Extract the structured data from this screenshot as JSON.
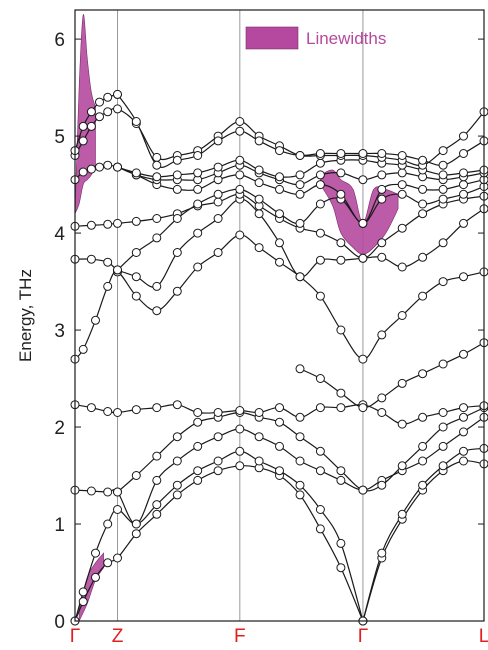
{
  "chart_data": {
    "type": "line",
    "title": "",
    "ylabel": "Energy, THz",
    "xlabel": "",
    "ylim": [
      0,
      6.3
    ],
    "yticks": [
      0,
      1,
      2,
      3,
      4,
      5,
      6
    ],
    "ytick_labels": [
      "0",
      "1",
      "2",
      "3",
      "4",
      "5",
      "6"
    ],
    "xlim": [
      0,
      1
    ],
    "grid": false,
    "legend_position": "top-right",
    "high_symmetry_points": [
      {
        "label": "Γ",
        "x": 0.0
      },
      {
        "label": "Z",
        "x": 0.104
      },
      {
        "label": "F",
        "x": 0.403
      },
      {
        "label": "Γ",
        "x": 0.704
      },
      {
        "label": "L",
        "x": 1.0
      }
    ],
    "legend": {
      "label": "Linewidths",
      "color": "#b5499f"
    },
    "colors": {
      "branch": "#1a1a1a",
      "linewidth_fill": "#b5499f",
      "symmetry_label": "#e02020",
      "vline": "#999999"
    },
    "branches": [
      {
        "x": [
          0,
          0.02,
          0.05,
          0.08,
          0.104,
          0.15,
          0.2,
          0.25,
          0.3,
          0.35,
          0.403,
          0.45,
          0.5,
          0.55,
          0.6,
          0.65,
          0.704
        ],
        "y": [
          0,
          0.2,
          0.45,
          0.6,
          0.65,
          0.9,
          1.1,
          1.3,
          1.45,
          1.55,
          1.6,
          1.58,
          1.5,
          1.3,
          0.95,
          0.55,
          0
        ]
      },
      {
        "x": [
          0,
          0.02,
          0.05,
          0.08,
          0.104,
          0.15,
          0.2,
          0.25,
          0.3,
          0.35,
          0.403,
          0.45,
          0.5,
          0.55,
          0.6,
          0.65,
          0.704
        ],
        "y": [
          0,
          0.3,
          0.7,
          1.0,
          1.15,
          1.0,
          1.2,
          1.4,
          1.55,
          1.65,
          1.75,
          1.65,
          1.55,
          1.4,
          1.15,
          0.8,
          0
        ]
      },
      {
        "x": [
          0.704,
          0.75,
          0.8,
          0.85,
          0.9,
          0.95,
          1.0
        ],
        "y": [
          0,
          0.65,
          1.05,
          1.35,
          1.55,
          1.65,
          1.62
        ]
      },
      {
        "x": [
          0.704,
          0.75,
          0.8,
          0.85,
          0.9,
          0.95,
          1.0
        ],
        "y": [
          0,
          0.7,
          1.1,
          1.4,
          1.6,
          1.75,
          1.78
        ]
      },
      {
        "x": [
          0,
          0.04,
          0.08,
          0.104,
          0.15,
          0.2,
          0.25,
          0.3,
          0.35,
          0.403,
          0.45,
          0.5,
          0.55,
          0.6,
          0.65,
          0.704,
          0.75,
          0.8,
          0.85,
          0.9,
          0.95,
          1.0
        ],
        "y": [
          1.35,
          1.34,
          1.33,
          1.33,
          1.0,
          1.45,
          1.65,
          1.8,
          1.9,
          1.98,
          1.9,
          1.8,
          1.65,
          1.55,
          1.45,
          1.35,
          1.45,
          1.55,
          1.65,
          1.8,
          1.95,
          2.1
        ]
      },
      {
        "x": [
          0.104,
          0.15,
          0.2,
          0.25,
          0.3,
          0.35,
          0.403,
          0.45,
          0.5,
          0.55,
          0.6,
          0.65,
          0.704,
          0.75,
          0.8,
          0.85,
          0.9,
          0.95,
          1.0
        ],
        "y": [
          1.33,
          1.5,
          1.7,
          1.9,
          2.05,
          2.1,
          2.15,
          2.1,
          2.05,
          1.9,
          1.75,
          1.55,
          1.35,
          1.4,
          1.6,
          1.8,
          2.0,
          2.1,
          2.2
        ]
      },
      {
        "x": [
          0,
          0.04,
          0.08,
          0.104,
          0.15,
          0.2,
          0.25,
          0.3,
          0.35,
          0.403,
          0.45,
          0.5,
          0.55,
          0.6,
          0.65,
          0.704,
          0.75,
          0.8,
          0.85,
          0.9,
          0.95,
          1.0
        ],
        "y": [
          2.23,
          2.2,
          2.16,
          2.15,
          2.18,
          2.2,
          2.23,
          2.15,
          2.15,
          2.17,
          2.15,
          2.2,
          2.1,
          2.2,
          2.2,
          2.23,
          2.15,
          2.03,
          2.1,
          2.15,
          2.2,
          2.22
        ]
      },
      {
        "x": [
          0,
          0.02,
          0.05,
          0.08,
          0.104,
          0.15,
          0.2,
          0.25,
          0.3,
          0.35,
          0.403,
          0.45,
          0.5,
          0.55,
          0.6,
          0.65,
          0.704,
          0.75,
          0.8,
          0.85,
          0.9,
          0.95,
          1.0
        ],
        "y": [
          2.7,
          2.8,
          3.1,
          3.45,
          3.6,
          3.35,
          3.2,
          3.4,
          3.65,
          3.8,
          3.98,
          3.85,
          3.7,
          3.55,
          3.35,
          3.0,
          2.7,
          2.95,
          3.15,
          3.35,
          3.5,
          3.55,
          3.6
        ]
      },
      {
        "x": [
          0.55,
          0.6,
          0.65,
          0.704,
          0.75,
          0.8,
          0.85,
          0.9,
          0.95,
          1.0
        ],
        "y": [
          2.6,
          2.5,
          2.35,
          2.2,
          2.3,
          2.45,
          2.55,
          2.65,
          2.75,
          2.87
        ]
      },
      {
        "x": [
          0,
          0.04,
          0.08,
          0.104,
          0.15,
          0.2,
          0.25,
          0.3,
          0.35,
          0.403,
          0.45,
          0.5,
          0.55,
          0.6,
          0.65,
          0.704,
          0.75,
          0.8,
          0.85,
          0.9,
          0.95,
          1.0
        ],
        "y": [
          3.73,
          3.73,
          3.7,
          3.62,
          3.55,
          3.45,
          3.8,
          4.0,
          4.15,
          4.35,
          4.2,
          3.9,
          3.55,
          3.72,
          3.72,
          3.74,
          3.75,
          3.65,
          3.75,
          3.9,
          4.1,
          4.25
        ]
      },
      {
        "x": [
          0,
          0.04,
          0.08,
          0.104,
          0.15,
          0.2,
          0.25,
          0.3,
          0.35,
          0.403,
          0.45,
          0.5,
          0.55,
          0.6,
          0.65,
          0.704,
          0.75,
          0.8,
          0.85,
          0.9,
          0.95,
          1.0
        ],
        "y": [
          4.07,
          4.08,
          4.09,
          4.1,
          4.12,
          4.15,
          4.2,
          4.28,
          4.32,
          4.4,
          4.28,
          4.15,
          4.05,
          4.0,
          3.9,
          3.74,
          3.9,
          4.05,
          4.2,
          4.3,
          4.35,
          4.38
        ]
      },
      {
        "x": [
          0.104,
          0.15,
          0.2,
          0.25,
          0.3,
          0.35,
          0.403,
          0.45,
          0.5,
          0.55,
          0.6,
          0.65,
          0.704,
          0.75,
          0.8,
          0.85,
          0.9,
          0.95,
          1.0
        ],
        "y": [
          3.62,
          3.8,
          3.95,
          4.15,
          4.3,
          4.4,
          4.45,
          4.35,
          4.2,
          4.1,
          4.3,
          4.35,
          4.1,
          4.35,
          4.4,
          4.3,
          4.35,
          4.4,
          4.48
        ]
      },
      {
        "x": [
          0,
          0.02,
          0.04,
          0.06,
          0.08,
          0.104,
          0.15,
          0.2,
          0.25,
          0.3,
          0.35,
          0.403,
          0.45,
          0.5,
          0.55,
          0.6,
          0.65,
          0.704,
          0.75,
          0.8,
          0.85,
          0.9,
          0.95,
          1.0
        ],
        "y": [
          4.55,
          4.63,
          4.66,
          4.68,
          4.7,
          4.68,
          4.6,
          4.5,
          4.45,
          4.45,
          4.55,
          4.6,
          4.52,
          4.45,
          4.4,
          4.5,
          4.4,
          4.1,
          4.45,
          4.5,
          4.45,
          4.45,
          4.5,
          4.55
        ]
      },
      {
        "x": [
          0.104,
          0.15,
          0.2,
          0.25,
          0.3,
          0.35,
          0.403,
          0.45,
          0.5,
          0.55,
          0.6,
          0.65,
          0.704,
          0.75,
          0.8,
          0.85,
          0.9,
          0.95,
          1.0
        ],
        "y": [
          4.68,
          4.6,
          4.55,
          4.55,
          4.55,
          4.62,
          4.7,
          4.62,
          4.55,
          4.5,
          4.6,
          4.62,
          4.55,
          4.6,
          4.62,
          4.58,
          4.55,
          4.58,
          4.62
        ]
      },
      {
        "x": [
          0.104,
          0.15,
          0.2,
          0.25,
          0.3,
          0.35,
          0.403,
          0.45,
          0.5,
          0.55,
          0.6,
          0.65,
          0.704,
          0.75,
          0.8,
          0.85,
          0.9,
          0.95,
          1.0
        ],
        "y": [
          4.68,
          4.62,
          4.58,
          4.6,
          4.62,
          4.68,
          4.75,
          4.65,
          4.58,
          4.6,
          4.72,
          4.75,
          4.75,
          4.72,
          4.7,
          4.65,
          4.6,
          4.62,
          4.65
        ]
      },
      {
        "x": [
          0,
          0.02,
          0.04,
          0.06,
          0.08,
          0.104,
          0.15,
          0.2,
          0.25,
          0.3,
          0.35,
          0.403,
          0.45,
          0.5,
          0.55,
          0.6,
          0.65,
          0.704,
          0.75,
          0.8,
          0.85,
          0.9,
          0.95,
          1.0
        ],
        "y": [
          4.8,
          4.95,
          5.1,
          5.2,
          5.25,
          5.28,
          5.13,
          4.78,
          4.8,
          4.85,
          5.0,
          5.15,
          5.0,
          4.9,
          4.8,
          4.8,
          4.8,
          4.8,
          4.78,
          4.75,
          4.7,
          4.85,
          5.0,
          5.25
        ]
      },
      {
        "x": [
          0,
          0.02,
          0.04,
          0.06,
          0.08,
          0.104
        ],
        "y": [
          4.85,
          5.1,
          5.25,
          5.35,
          5.4,
          5.43
        ]
      },
      {
        "x": [
          0.104,
          0.15,
          0.2,
          0.25,
          0.3,
          0.35,
          0.403,
          0.45,
          0.5,
          0.55,
          0.6,
          0.65,
          0.704,
          0.75,
          0.8,
          0.85,
          0.9,
          0.95,
          1.0
        ],
        "y": [
          5.43,
          5.15,
          4.7,
          4.75,
          4.8,
          4.95,
          5.05,
          4.95,
          4.85,
          4.8,
          4.82,
          4.82,
          4.82,
          4.82,
          4.8,
          4.75,
          4.7,
          4.82,
          4.95
        ]
      }
    ],
    "linewidth_regions": [
      {
        "x": [
          0,
          0.01,
          0.02,
          0.03,
          0.04,
          0.05
        ],
        "upper": [
          4.2,
          5.5,
          6.25,
          5.8,
          5.45,
          5.3
        ],
        "lower": [
          4.2,
          4.3,
          4.5,
          4.55,
          4.6,
          4.7
        ]
      },
      {
        "x": [
          0.01,
          0.03,
          0.05,
          0.07
        ],
        "upper": [
          0.12,
          0.45,
          0.6,
          0.7
        ],
        "lower": [
          0,
          0.18,
          0.42,
          0.55
        ]
      },
      {
        "x": [
          0.6,
          0.63,
          0.65,
          0.68,
          0.704,
          0.73,
          0.76,
          0.79
        ],
        "upper": [
          4.6,
          4.65,
          4.55,
          4.45,
          4.1,
          4.45,
          4.45,
          4.4
        ],
        "lower": [
          4.5,
          4.28,
          4.0,
          3.85,
          3.78,
          3.85,
          4.0,
          4.25
        ]
      }
    ]
  }
}
